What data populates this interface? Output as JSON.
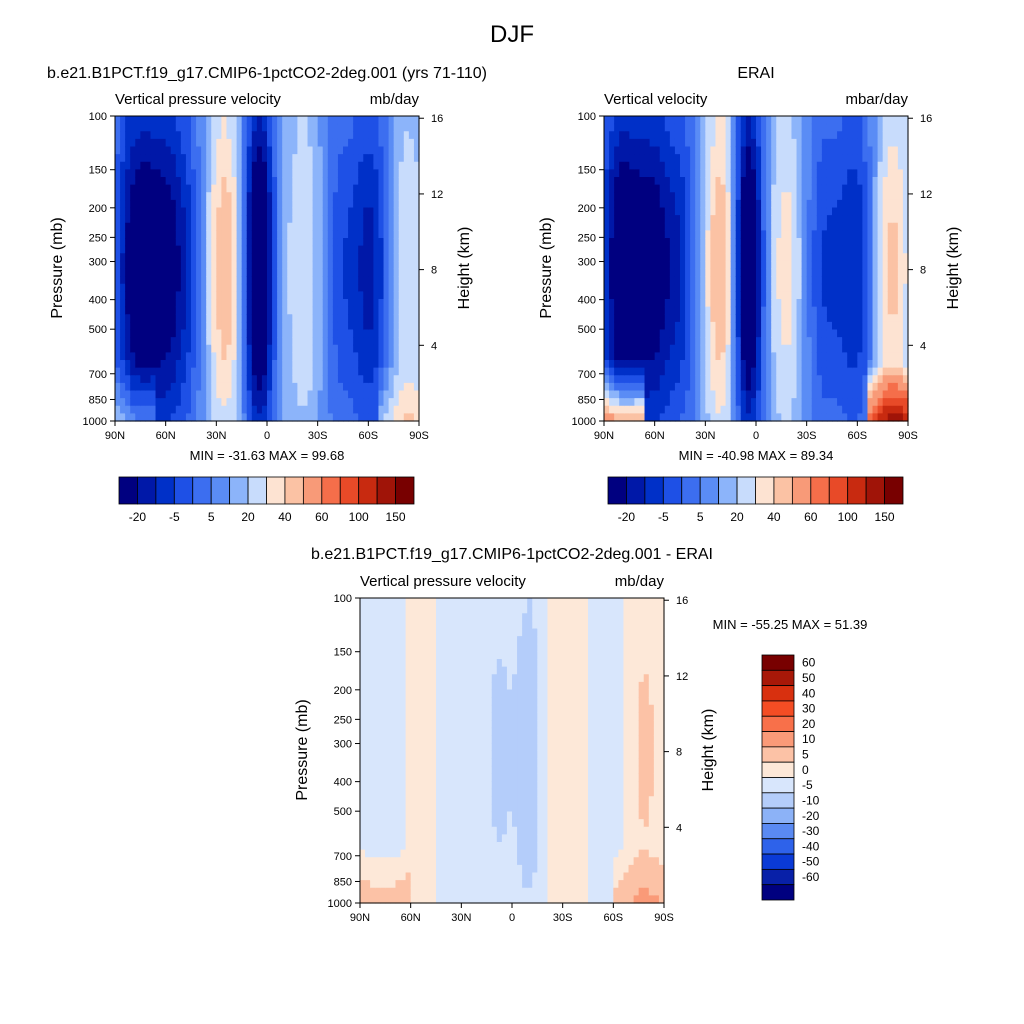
{
  "page": {
    "title": "DJF"
  },
  "panels": [
    {
      "heading": "b.e21.B1PCT.f19_g17.CMIP6-1pctCO2-2deg.001 (yrs 71-110)",
      "left_string": "Vertical pressure velocity",
      "right_string": "mb/day",
      "ylabel": "Pressure (mb)",
      "ylabel_right": "Height (km)",
      "min_max": "MIN = -31.63  MAX =  99.68",
      "colorbar_labels": [
        "-20",
        "-5",
        "5",
        "20",
        "40",
        "60",
        "100",
        "150"
      ]
    },
    {
      "heading": "ERAI",
      "left_string": "Vertical velocity",
      "right_string": "mbar/day",
      "ylabel": "Pressure (mb)",
      "ylabel_right": "Height (km)",
      "min_max": "MIN = -40.98  MAX =  89.34",
      "colorbar_labels": [
        "-20",
        "-5",
        "5",
        "20",
        "40",
        "60",
        "100",
        "150"
      ]
    },
    {
      "heading": "b.e21.B1PCT.f19_g17.CMIP6-1pctCO2-2deg.001 - ERAI",
      "left_string": "Vertical pressure velocity",
      "right_string": "mb/day",
      "ylabel": "Pressure (mb)",
      "ylabel_right": "Height (km)",
      "min_max": "MIN = -55.25  MAX =  51.39",
      "colorbar_labels": [
        "60",
        "50",
        "40",
        "30",
        "20",
        "10",
        "5",
        "0",
        "-5",
        "-10",
        "-20",
        "-30",
        "-40",
        "-50",
        "-60"
      ]
    }
  ],
  "colors": {
    "main_scale": [
      "#000080",
      "#0018a8",
      "#0030c8",
      "#1e50e6",
      "#3c6ef0",
      "#5a8cf5",
      "#8cb4fa",
      "#c8dcfc",
      "#fde3d2",
      "#fbc2a4",
      "#f89a78",
      "#f56e4a",
      "#e84a28",
      "#c82a10",
      "#a01408",
      "#780000"
    ],
    "diff_scale": [
      "#780000",
      "#a81808",
      "#d8300f",
      "#f44d24",
      "#f8704a",
      "#fa9a78",
      "#fcc2a6",
      "#fde8d8",
      "#d8e6fc",
      "#b4cdfa",
      "#8cb2f7",
      "#5a8af2",
      "#2e62ea",
      "#0a3ad6",
      "#0820a8",
      "#000080"
    ]
  },
  "chart_data": [
    {
      "type": "heatmap",
      "title": "b.e21.B1PCT.f19_g17.CMIP6-1pctCO2-2deg.001 (yrs 71-110)",
      "ylabel": "Pressure (mb)",
      "ylabel_right": "Height (km)",
      "x_ticks": [
        "90N",
        "60N",
        "30N",
        "0",
        "30S",
        "60S",
        "90S"
      ],
      "x_range": [
        90,
        -90
      ],
      "y_ticks": [
        100,
        150,
        200,
        250,
        300,
        400,
        500,
        700,
        850,
        1000
      ],
      "y_range": [
        1000,
        100
      ],
      "y_scale": "log",
      "y_right_ticks": [
        4,
        8,
        12,
        16
      ],
      "min": -31.63,
      "max": 99.68,
      "field": {
        "pattern": "model",
        "centers": [
          {
            "lat": 78,
            "v": -1.2
          },
          {
            "lat": 62,
            "v": -1.0
          },
          {
            "lat": 48,
            "v": -0.6
          },
          {
            "lat": 25,
            "v": 0.9
          },
          {
            "lat": 5,
            "v": -1.7
          },
          {
            "lat": -22,
            "v": 0.5
          },
          {
            "lat": -43,
            "v": -0.5
          },
          {
            "lat": -62,
            "v": -0.9
          },
          {
            "lat": -82,
            "v": 0.5
          }
        ]
      },
      "contour_levels": [
        -20,
        -15,
        -10,
        -5,
        0,
        5,
        10,
        20,
        30,
        40,
        50,
        60,
        80,
        100,
        150
      ]
    },
    {
      "type": "heatmap",
      "title": "ERAI",
      "ylabel": "Pressure (mb)",
      "ylabel_right": "Height (km)",
      "x_ticks": [
        "90N",
        "60N",
        "30N",
        "0",
        "30S",
        "60S",
        "90S"
      ],
      "x_range": [
        90,
        -90
      ],
      "y_ticks": [
        100,
        150,
        200,
        250,
        300,
        400,
        500,
        700,
        850,
        1000
      ],
      "y_range": [
        1000,
        100
      ],
      "y_scale": "log",
      "y_right_ticks": [
        4,
        8,
        12,
        16
      ],
      "min": -40.98,
      "max": 89.34,
      "field": {
        "pattern": "obs",
        "centers": [
          {
            "lat": 80,
            "v": -1.3
          },
          {
            "lat": 62,
            "v": -1.1
          },
          {
            "lat": 45,
            "v": -0.7
          },
          {
            "lat": 20,
            "v": 1.0
          },
          {
            "lat": 5,
            "v": -1.8
          },
          {
            "lat": -18,
            "v": 0.6
          },
          {
            "lat": -40,
            "v": -0.6
          },
          {
            "lat": -60,
            "v": -0.8
          },
          {
            "lat": -80,
            "v": 0.8
          }
        ]
      },
      "contour_levels": [
        -20,
        -15,
        -10,
        -5,
        0,
        5,
        10,
        20,
        30,
        40,
        50,
        60,
        80,
        100,
        150
      ]
    },
    {
      "type": "heatmap",
      "title": "b.e21.B1PCT.f19_g17.CMIP6-1pctCO2-2deg.001 - ERAI",
      "ylabel": "Pressure (mb)",
      "ylabel_right": "Height (km)",
      "x_ticks": [
        "90N",
        "60N",
        "30N",
        "0",
        "30S",
        "60S",
        "90S"
      ],
      "x_range": [
        90,
        -90
      ],
      "y_ticks": [
        100,
        150,
        200,
        250,
        300,
        400,
        500,
        700,
        850,
        1000
      ],
      "y_range": [
        1000,
        100
      ],
      "y_scale": "log",
      "y_right_ticks": [
        4,
        8,
        12,
        16
      ],
      "min": -55.25,
      "max": 51.39,
      "field": {
        "pattern": "diff",
        "centers": [
          {
            "lat": 75,
            "v": 0.3
          },
          {
            "lat": 55,
            "v": -0.2
          },
          {
            "lat": 32,
            "v": 0.35
          },
          {
            "lat": 8,
            "v": 0.6
          },
          {
            "lat": -10,
            "v": 0.9
          },
          {
            "lat": -30,
            "v": -0.25
          },
          {
            "lat": -60,
            "v": 0.3
          },
          {
            "lat": -78,
            "v": -0.6
          }
        ]
      },
      "contour_levels": [
        -60,
        -50,
        -40,
        -30,
        -20,
        -10,
        -5,
        0,
        5,
        10,
        20,
        30,
        40,
        50,
        60
      ]
    }
  ]
}
